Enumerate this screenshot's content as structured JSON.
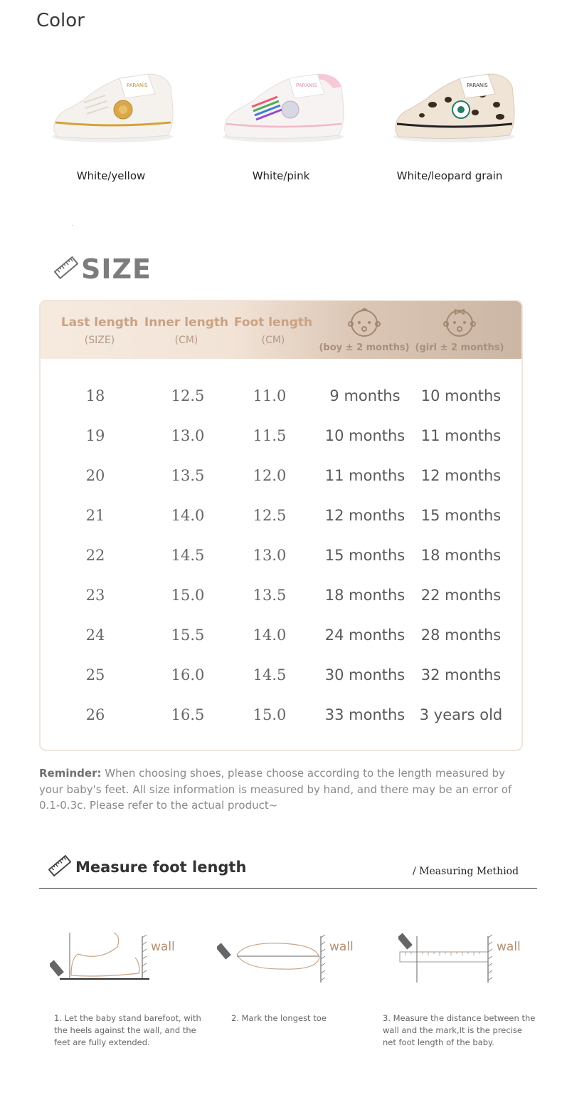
{
  "color_section": {
    "title": "Color",
    "variants": [
      {
        "label": "White/yellow",
        "accent": "#d4a23a",
        "brand": "PARANIS"
      },
      {
        "label": "White/pink",
        "accent": "#f2b8c8",
        "brand": "PARANIS"
      },
      {
        "label": "White/leopard grain",
        "accent": "#3a2a20",
        "brand": "PARANIS"
      }
    ],
    "stray_dot": "."
  },
  "size_section": {
    "title": "SIZE",
    "columns": [
      {
        "title": "Last length",
        "sub": "(SIZE)"
      },
      {
        "title": "Inner length",
        "sub": "(CM)"
      },
      {
        "title": "Foot length",
        "sub": "(CM)"
      },
      {
        "title": "",
        "sub": "(boy ± 2 months)",
        "icon": "baby-boy-icon"
      },
      {
        "title": "",
        "sub": "(girl ± 2 months)",
        "icon": "baby-girl-icon"
      }
    ],
    "rows": [
      [
        "18",
        "12.5",
        "11.0",
        "9 months",
        "10 months"
      ],
      [
        "19",
        "13.0",
        "11.5",
        "10 months",
        "11 months"
      ],
      [
        "20",
        "13.5",
        "12.0",
        "11 months",
        "12 months"
      ],
      [
        "21",
        "14.0",
        "12.5",
        "12 months",
        "15 months"
      ],
      [
        "22",
        "14.5",
        "13.0",
        "15 months",
        "18 months"
      ],
      [
        "23",
        "15.0",
        "13.5",
        "18 months",
        "22 months"
      ],
      [
        "24",
        "15.5",
        "14.0",
        "24 months",
        "28 months"
      ],
      [
        "25",
        "16.0",
        "14.5",
        "30 months",
        "32 months"
      ],
      [
        "26",
        "16.5",
        "15.0",
        "33 months",
        "3 years old"
      ]
    ],
    "reminder_label": "Reminder:",
    "reminder_text": " When choosing shoes, please choose according to the length measured by your baby's feet. All size information is measured by hand, and there may be an error of 0.1-0.3c. Please refer to the actual product~"
  },
  "measure_section": {
    "title": "Measure foot length",
    "subtitle": "/ Measuring Methiod",
    "wall_label": "wall",
    "steps": [
      "1. Let the baby stand barefoot, with the heels against the wall, and the feet are fully extended.",
      "2. Mark the longest toe",
      "3. Measure the distance between the wall and the mark,It is the precise net foot length of  the baby."
    ]
  },
  "colors": {
    "header_gold": "#caa283",
    "table_border": "#f0e4dc",
    "text_gray": "#5a5a5a"
  }
}
